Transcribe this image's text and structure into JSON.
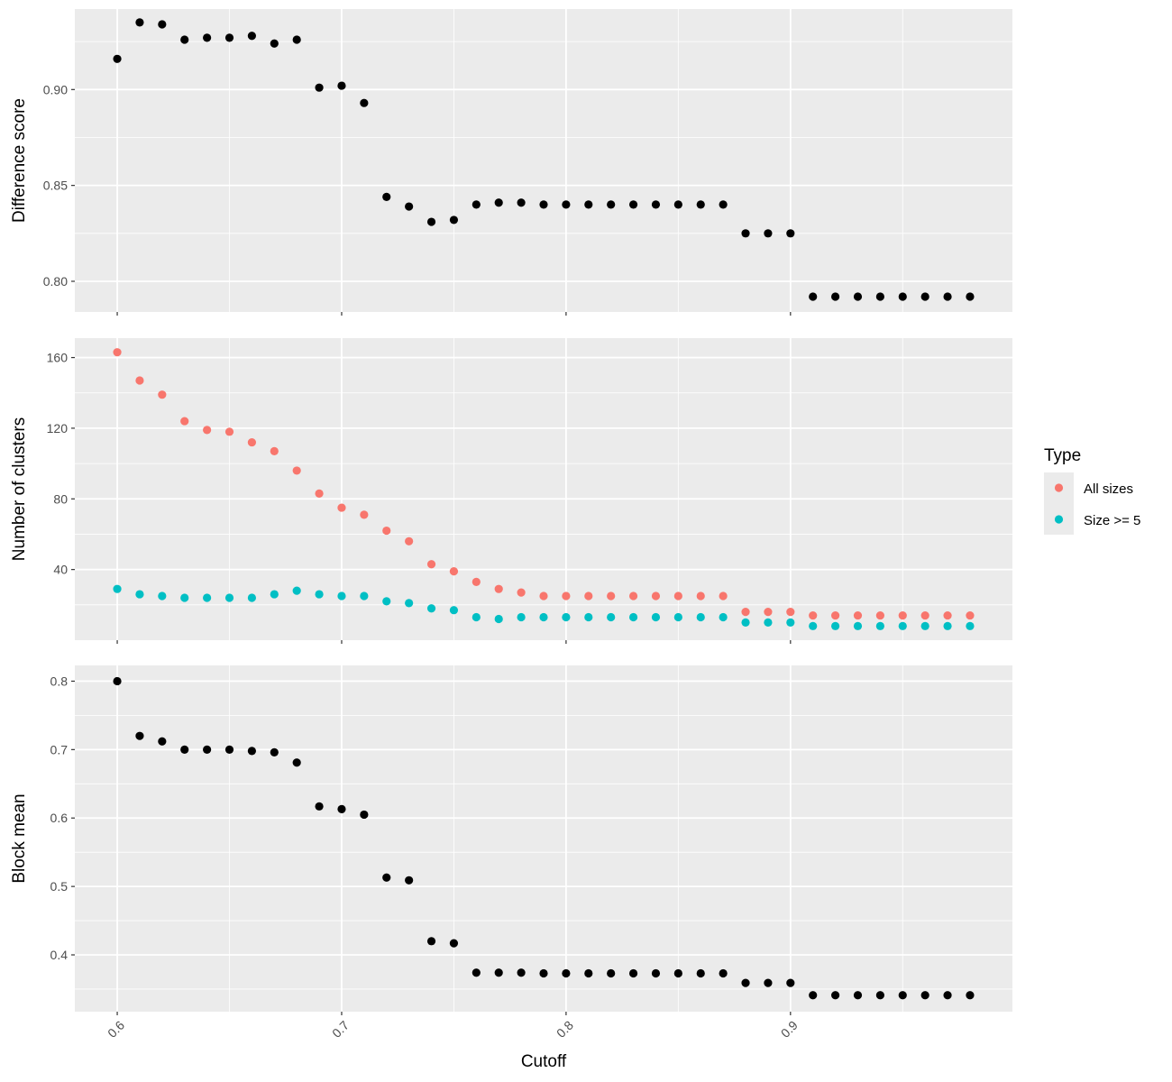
{
  "chart_data": [
    {
      "type": "scatter",
      "panel": "top",
      "ylabel": "Difference score",
      "ylim": [
        0.784,
        0.942
      ],
      "yticks": [
        0.8,
        0.85,
        0.9
      ],
      "ytick_labels": [
        "0.80",
        "0.85",
        "0.90"
      ],
      "grid": true,
      "series": [
        {
          "color": "#000000",
          "x": [
            0.6,
            0.61,
            0.62,
            0.63,
            0.64,
            0.65,
            0.66,
            0.67,
            0.68,
            0.69,
            0.7,
            0.71,
            0.72,
            0.73,
            0.74,
            0.75,
            0.76,
            0.77,
            0.78,
            0.79,
            0.8,
            0.81,
            0.82,
            0.83,
            0.84,
            0.85,
            0.86,
            0.87,
            0.88,
            0.89,
            0.9,
            0.91,
            0.92,
            0.93,
            0.94,
            0.95,
            0.96,
            0.97,
            0.98
          ],
          "y": [
            0.916,
            0.935,
            0.934,
            0.926,
            0.927,
            0.927,
            0.928,
            0.924,
            0.926,
            0.901,
            0.902,
            0.893,
            0.844,
            0.839,
            0.831,
            0.832,
            0.84,
            0.841,
            0.841,
            0.84,
            0.84,
            0.84,
            0.84,
            0.84,
            0.84,
            0.84,
            0.84,
            0.84,
            0.825,
            0.825,
            0.825,
            0.792,
            0.792,
            0.792,
            0.792,
            0.792,
            0.792,
            0.792,
            0.792
          ]
        }
      ]
    },
    {
      "type": "scatter",
      "panel": "middle",
      "ylabel": "Number of clusters",
      "ylim": [
        0,
        171
      ],
      "yticks": [
        40,
        80,
        120,
        160
      ],
      "ytick_labels": [
        "40",
        "80",
        "120",
        "160"
      ],
      "grid": true,
      "series": [
        {
          "name": "All sizes",
          "color": "#F8766D",
          "x": [
            0.6,
            0.61,
            0.62,
            0.63,
            0.64,
            0.65,
            0.66,
            0.67,
            0.68,
            0.69,
            0.7,
            0.71,
            0.72,
            0.73,
            0.74,
            0.75,
            0.76,
            0.77,
            0.78,
            0.79,
            0.8,
            0.81,
            0.82,
            0.83,
            0.84,
            0.85,
            0.86,
            0.87,
            0.88,
            0.89,
            0.9,
            0.91,
            0.92,
            0.93,
            0.94,
            0.95,
            0.96,
            0.97,
            0.98
          ],
          "y": [
            163,
            147,
            139,
            124,
            119,
            118,
            112,
            107,
            96,
            83,
            75,
            71,
            62,
            56,
            43,
            39,
            33,
            29,
            27,
            25,
            25,
            25,
            25,
            25,
            25,
            25,
            25,
            25,
            16,
            16,
            16,
            14,
            14,
            14,
            14,
            14,
            14,
            14,
            14
          ]
        },
        {
          "name": "Size >= 5",
          "color": "#00BFC4",
          "x": [
            0.6,
            0.61,
            0.62,
            0.63,
            0.64,
            0.65,
            0.66,
            0.67,
            0.68,
            0.69,
            0.7,
            0.71,
            0.72,
            0.73,
            0.74,
            0.75,
            0.76,
            0.77,
            0.78,
            0.79,
            0.8,
            0.81,
            0.82,
            0.83,
            0.84,
            0.85,
            0.86,
            0.87,
            0.88,
            0.89,
            0.9,
            0.91,
            0.92,
            0.93,
            0.94,
            0.95,
            0.96,
            0.97,
            0.98
          ],
          "y": [
            29,
            26,
            25,
            24,
            24,
            24,
            24,
            26,
            28,
            26,
            25,
            25,
            22,
            21,
            18,
            17,
            13,
            12,
            13,
            13,
            13,
            13,
            13,
            13,
            13,
            13,
            13,
            13,
            10,
            10,
            10,
            8,
            8,
            8,
            8,
            8,
            8,
            8,
            8
          ]
        }
      ]
    },
    {
      "type": "scatter",
      "panel": "bottom",
      "ylabel": "Block mean",
      "xlabel": "Cutoff",
      "ylim": [
        0.317,
        0.823
      ],
      "yticks": [
        0.4,
        0.5,
        0.6,
        0.7,
        0.8
      ],
      "ytick_labels": [
        "0.4",
        "0.5",
        "0.6",
        "0.7",
        "0.8"
      ],
      "grid": true,
      "series": [
        {
          "color": "#000000",
          "x": [
            0.6,
            0.61,
            0.62,
            0.63,
            0.64,
            0.65,
            0.66,
            0.67,
            0.68,
            0.69,
            0.7,
            0.71,
            0.72,
            0.73,
            0.74,
            0.75,
            0.76,
            0.77,
            0.78,
            0.79,
            0.8,
            0.81,
            0.82,
            0.83,
            0.84,
            0.85,
            0.86,
            0.87,
            0.88,
            0.89,
            0.9,
            0.91,
            0.92,
            0.93,
            0.94,
            0.95,
            0.96,
            0.97,
            0.98
          ],
          "y": [
            0.8,
            0.72,
            0.712,
            0.7,
            0.7,
            0.7,
            0.698,
            0.696,
            0.681,
            0.617,
            0.613,
            0.605,
            0.513,
            0.509,
            0.42,
            0.417,
            0.374,
            0.374,
            0.374,
            0.373,
            0.373,
            0.373,
            0.373,
            0.373,
            0.373,
            0.373,
            0.373,
            0.373,
            0.359,
            0.359,
            0.359,
            0.341,
            0.341,
            0.341,
            0.341,
            0.341,
            0.341,
            0.341,
            0.341
          ]
        }
      ]
    }
  ],
  "x_axis": {
    "label": "Cutoff",
    "xlim": [
      0.5811,
      0.9989
    ],
    "ticks": [
      0.6,
      0.7,
      0.8,
      0.9
    ],
    "tick_labels": [
      "0.6",
      "0.7",
      "0.8",
      "0.9"
    ],
    "minor_ticks": [
      0.65,
      0.75,
      0.85,
      0.95
    ]
  },
  "legend": {
    "title": "Type",
    "placement": "right",
    "items": [
      {
        "label": "All sizes",
        "color": "#F8766D"
      },
      {
        "label": "Size >= 5",
        "color": "#00BFC4"
      }
    ]
  },
  "colors": {
    "panel_bg": "#EBEBEB",
    "grid": "#FFFFFF",
    "point_default": "#000000"
  }
}
